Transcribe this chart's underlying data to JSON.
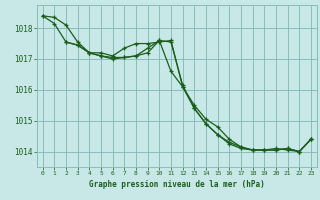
{
  "background_color": "#c8e8e8",
  "plot_bg_color": "#c8e8e8",
  "grid_color": "#8bbcbc",
  "line_color": "#1a5e1a",
  "marker_color": "#1a5e1a",
  "xlabel": "Graphe pression niveau de la mer (hPa)",
  "ylim": [
    1013.5,
    1018.75
  ],
  "xlim": [
    -0.5,
    23.5
  ],
  "yticks": [
    1014,
    1015,
    1016,
    1017,
    1018
  ],
  "xticks": [
    0,
    1,
    2,
    3,
    4,
    5,
    6,
    7,
    8,
    9,
    10,
    11,
    12,
    13,
    14,
    15,
    16,
    17,
    18,
    19,
    20,
    21,
    22,
    23
  ],
  "line1_x": [
    0,
    1,
    2,
    3,
    4,
    5,
    6,
    7,
    8,
    9,
    10,
    11,
    12,
    13,
    14,
    15,
    16,
    17,
    18,
    19,
    20,
    21,
    22,
    23
  ],
  "line1_y": [
    1018.4,
    1018.35,
    1018.1,
    1017.55,
    1017.2,
    1017.2,
    1017.1,
    1017.35,
    1017.5,
    1017.5,
    1017.55,
    1017.6,
    1016.1,
    1015.5,
    1015.05,
    1014.8,
    1014.4,
    1014.15,
    1014.05,
    1014.05,
    1014.1,
    1014.05,
    1014.0,
    1014.4
  ],
  "line2_x": [
    0,
    1,
    2,
    3,
    4,
    5,
    6,
    7,
    8,
    9,
    10,
    11,
    12,
    13,
    14,
    15,
    16,
    17,
    18,
    19,
    20,
    21,
    22,
    23
  ],
  "line2_y": [
    1018.4,
    1018.15,
    1017.55,
    1017.45,
    1017.2,
    1017.1,
    1017.05,
    1017.05,
    1017.1,
    1017.35,
    1017.6,
    1016.6,
    1016.1,
    1015.4,
    1014.9,
    1014.55,
    1014.3,
    1014.15,
    1014.05,
    1014.05,
    1014.05,
    1014.1,
    1014.0,
    1014.4
  ],
  "line3_x": [
    2,
    3,
    4,
    5,
    6,
    7,
    8,
    9,
    10,
    11,
    12,
    13,
    14,
    15,
    16,
    17,
    18,
    19,
    20,
    21,
    22,
    23
  ],
  "line3_y": [
    1017.55,
    1017.45,
    1017.2,
    1017.1,
    1017.0,
    1017.05,
    1017.1,
    1017.2,
    1017.6,
    1017.55,
    1016.15,
    1015.4,
    1014.9,
    1014.55,
    1014.25,
    1014.1,
    1014.05,
    1014.05,
    1014.05,
    1014.1,
    1014.0,
    1014.4
  ]
}
